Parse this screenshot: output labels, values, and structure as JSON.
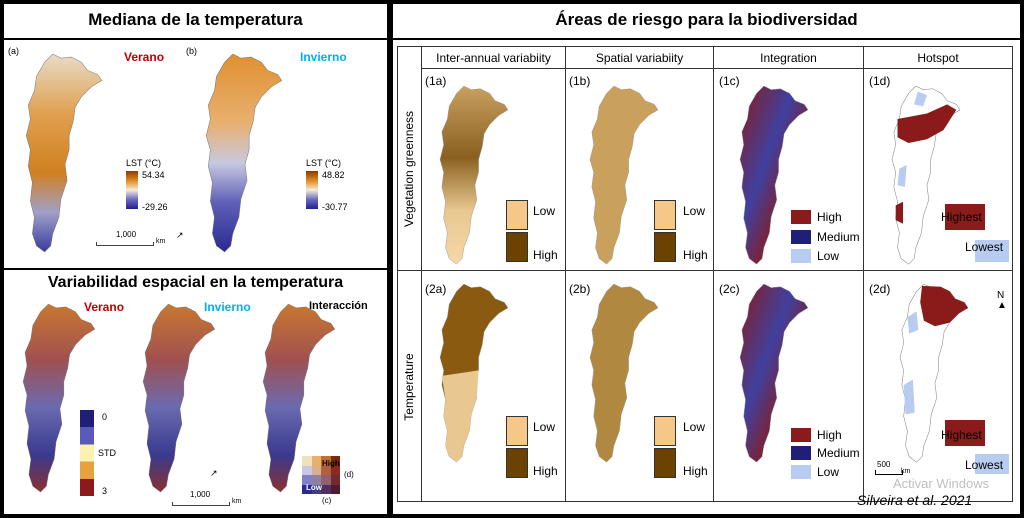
{
  "left_top": {
    "title": "Mediana de la temperatura",
    "map_a": {
      "panel_id": "(a)",
      "season": "Verano",
      "legend_title": "LST (°C)",
      "legend_max": "54.34",
      "legend_min": "-29.26"
    },
    "map_b": {
      "panel_id": "(b)",
      "season": "Invierno",
      "legend_title": "LST (°C)",
      "legend_max": "48.82",
      "legend_min": "-30.77"
    },
    "scale_label": "1,000",
    "scale_unit": "km"
  },
  "left_bottom": {
    "title": "Variabilidad espacial en la temperatura",
    "seasons": [
      "Verano",
      "Invierno",
      "Interacción"
    ],
    "legend_labels": [
      "0",
      "STD",
      "3"
    ],
    "interaction_legend": {
      "high": "High",
      "low": "Low",
      "panel_d": "(d)",
      "panel_c": "(c)"
    },
    "scale_label": "1,000",
    "scale_unit": "km"
  },
  "right": {
    "title": "Áreas de riesgo para la biodiversidad",
    "columns": [
      "Inter-annual variabiity",
      "Spatial variabiity",
      "Integration",
      "Hotspot"
    ],
    "rows": [
      "Vegetation greenness",
      "Temperature"
    ],
    "cells": [
      [
        "(1a)",
        "(1b)",
        "(1c)",
        "(1d)"
      ],
      [
        "(2a)",
        "(2b)",
        "(2c)",
        "(2d)"
      ]
    ],
    "legend_variability": [
      "Low",
      "High"
    ],
    "legend_integration": [
      "High",
      "Medium",
      "Low"
    ],
    "legend_hotspot": [
      "Highest",
      "Lowest"
    ],
    "north": "N",
    "scale_label": "500",
    "scale_unit": "km",
    "watermark": "Activar Windows",
    "citation": "Silveira et al. 2021"
  },
  "colors": {
    "verano": "#c00000",
    "invierno": "#00b0f0",
    "low_beige": "#f6c888",
    "high_brown": "#6b4200",
    "int_high": "#8b1a1a",
    "int_medium": "#1f1f7a",
    "int_low": "#b7ccf0"
  }
}
